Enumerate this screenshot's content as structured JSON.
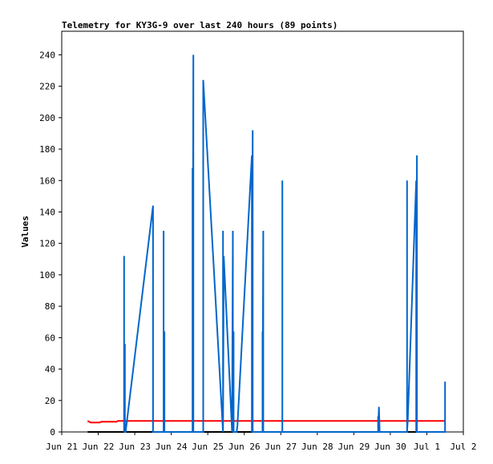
{
  "chart_data": {
    "type": "line",
    "title": "Telemetry for KY3G-9 over last 240 hours (89 points)",
    "xlabel": "",
    "ylabel": "Values",
    "ylim": [
      0,
      255
    ],
    "xlim": [
      "2021-06-21 00:00",
      "2021-07-02 00:00"
    ],
    "yticks": [
      0,
      20,
      40,
      60,
      80,
      100,
      120,
      140,
      160,
      180,
      200,
      220,
      240
    ],
    "xticks": [
      {
        "t": "2021-06-21 00:00",
        "label": "Jun 21"
      },
      {
        "t": "2021-06-22 00:00",
        "label": "Jun 22"
      },
      {
        "t": "2021-06-23 00:00",
        "label": "Jun 23"
      },
      {
        "t": "2021-06-24 00:00",
        "label": "Jun 24"
      },
      {
        "t": "2021-06-25 00:00",
        "label": "Jun 25"
      },
      {
        "t": "2021-06-26 00:00",
        "label": "Jun 26"
      },
      {
        "t": "2021-06-27 00:00",
        "label": "Jun 27"
      },
      {
        "t": "2021-06-28 00:00",
        "label": "Jun 28"
      },
      {
        "t": "2021-06-29 00:00",
        "label": "Jun 29"
      },
      {
        "t": "2021-06-30 00:00",
        "label": "Jun 30"
      },
      {
        "t": "2021-07-01 00:00",
        "label": "Jul 1"
      },
      {
        "t": "2021-07-02 00:00",
        "label": "Jul 2"
      }
    ],
    "grid": false,
    "series": [
      {
        "color": "#000000",
        "points": [
          [
            "2021-06-21 17:00",
            0
          ],
          [
            "2021-07-01 12:00",
            0
          ]
        ]
      },
      {
        "color": "#ff0000",
        "points": [
          [
            "2021-06-21 17:00",
            7
          ],
          [
            "2021-06-21 19:00",
            6
          ],
          [
            "2021-06-22 01:00",
            6
          ],
          [
            "2021-06-22 02:00",
            6.5
          ],
          [
            "2021-06-22 12:00",
            6.5
          ],
          [
            "2021-06-22 13:00",
            7
          ],
          [
            "2021-07-01 12:00",
            7
          ]
        ]
      },
      {
        "color": "#0066cc",
        "points": [
          [
            "2021-06-22 17:00",
            0
          ],
          [
            "2021-06-22 17:00",
            112
          ],
          [
            "2021-06-22 17:00",
            0
          ],
          [
            "2021-06-22 17:30",
            56
          ],
          [
            "2021-06-22 17:30",
            0
          ],
          [
            "2021-06-22 18:00",
            0
          ],
          [
            "2021-06-23 12:00",
            144
          ],
          [
            "2021-06-23 12:00",
            0
          ],
          [
            "2021-06-23 19:00",
            0
          ],
          [
            "2021-06-23 19:00",
            128
          ],
          [
            "2021-06-23 19:00",
            0
          ],
          [
            "2021-06-23 19:30",
            64
          ],
          [
            "2021-06-23 19:30",
            0
          ],
          [
            "2021-06-24 14:00",
            0
          ],
          [
            "2021-06-24 14:00",
            168
          ],
          [
            "2021-06-24 14:00",
            0
          ],
          [
            "2021-06-24 14:30",
            240
          ],
          [
            "2021-06-24 14:30",
            0
          ],
          [
            "2021-06-24 21:00",
            0
          ],
          [
            "2021-06-24 21:00",
            224
          ],
          [
            "2021-06-25 10:00",
            0
          ],
          [
            "2021-06-25 10:00",
            128
          ],
          [
            "2021-06-25 10:00",
            0
          ],
          [
            "2021-06-25 10:30",
            112
          ],
          [
            "2021-06-25 16:00",
            0
          ],
          [
            "2021-06-25 16:30",
            128
          ],
          [
            "2021-06-25 16:30",
            0
          ],
          [
            "2021-06-25 17:00",
            64
          ],
          [
            "2021-06-25 17:00",
            0
          ],
          [
            "2021-06-25 19:00",
            0
          ],
          [
            "2021-06-25 19:30",
            4
          ],
          [
            "2021-06-26 05:00",
            176
          ],
          [
            "2021-06-26 05:00",
            0
          ],
          [
            "2021-06-26 05:30",
            192
          ],
          [
            "2021-06-26 05:30",
            0
          ],
          [
            "2021-06-26 12:00",
            0
          ],
          [
            "2021-06-26 12:00",
            64
          ],
          [
            "2021-06-26 12:00",
            0
          ],
          [
            "2021-06-26 12:30",
            128
          ],
          [
            "2021-06-26 12:30",
            0
          ],
          [
            "2021-06-27 01:00",
            0
          ],
          [
            "2021-06-27 01:00",
            160
          ],
          [
            "2021-06-27 01:00",
            0
          ],
          [
            "2021-06-29 16:00",
            0
          ],
          [
            "2021-06-29 16:00",
            10
          ],
          [
            "2021-06-29 16:00",
            0
          ],
          [
            "2021-06-29 16:30",
            16
          ],
          [
            "2021-06-29 17:00",
            0
          ],
          [
            "2021-06-30 11:00",
            0
          ],
          [
            "2021-06-30 11:00",
            160
          ],
          [
            "2021-06-30 11:00",
            0
          ],
          [
            "2021-06-30 11:30",
            8
          ],
          [
            "2021-06-30 17:00",
            160
          ],
          [
            "2021-06-30 17:00",
            0
          ],
          [
            "2021-06-30 17:30",
            176
          ],
          [
            "2021-06-30 17:30",
            0
          ],
          [
            "2021-07-01 12:00",
            0
          ],
          [
            "2021-07-01 12:00",
            32
          ],
          [
            "2021-07-01 12:00",
            0
          ]
        ]
      }
    ]
  }
}
